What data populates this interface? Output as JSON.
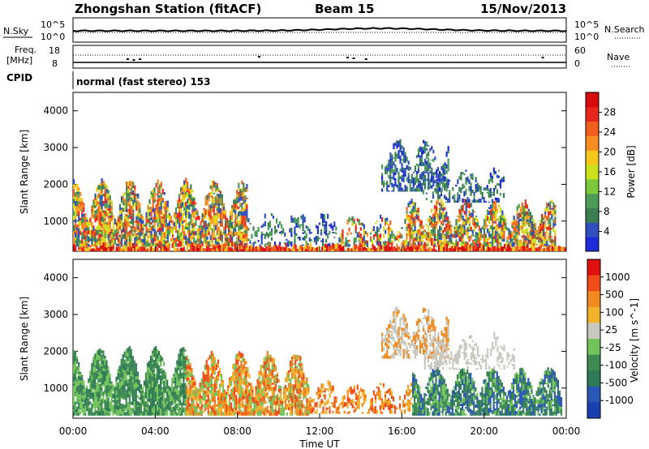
{
  "header": {
    "station": "Zhongshan Station (fitACF)",
    "beam": "Beam 15",
    "date": "15/Nov/2013"
  },
  "top_panels": {
    "nsky_label": "N.Sky",
    "nsearch_label": "N.Search",
    "nsky_ticks": [
      "10^5",
      "10^0"
    ],
    "nsearch_ticks": [
      "10^5",
      "10^0"
    ],
    "freq_label_1": "Freq.",
    "freq_label_2": "[MHz]",
    "freq_ticks": [
      "18",
      "8"
    ],
    "nave_label": "Nave",
    "nave_ticks": [
      "60",
      "0"
    ],
    "cpid_label": "CPID",
    "cpid_text": "normal (fast stereo) 153"
  },
  "time_axis": {
    "label": "Time UT",
    "ticks": [
      "00:00",
      "04:00",
      "08:00",
      "12:00",
      "16:00",
      "20:00",
      "00:00"
    ]
  },
  "chart_data": [
    {
      "type": "heatmap",
      "title": "",
      "xlabel": "Time UT",
      "ylabel": "Slant Range [km]",
      "xlim": [
        0,
        24
      ],
      "ylim": [
        180,
        4500
      ],
      "yticks": [
        "1000",
        "2000",
        "3000",
        "4000"
      ],
      "colorbar": {
        "label": "Power [dB]",
        "ticks": [
          "28",
          "24",
          "20",
          "16",
          "12",
          "8",
          "4"
        ],
        "colors": [
          "#1e2bd8",
          "#2f4fbf",
          "#3a7d52",
          "#4c9c58",
          "#7cc93c",
          "#c9e21c",
          "#f3c81b",
          "#f78c20",
          "#f05f1e",
          "#e8261c",
          "#d80c0c"
        ]
      },
      "description_values": {
        "regions": [
          {
            "t0": 0.0,
            "t1": 24.0,
            "r0": 180,
            "r1": 300,
            "level": "strong"
          },
          {
            "t0": 0.0,
            "t1": 8.5,
            "r0": 300,
            "r1": 2050,
            "level": "strong"
          },
          {
            "t0": 15.0,
            "t1": 18.3,
            "r0": 1800,
            "r1": 3150,
            "level": "weak"
          },
          {
            "t0": 16.2,
            "t1": 23.0,
            "r0": 300,
            "r1": 1500,
            "level": "strong"
          }
        ]
      }
    },
    {
      "type": "heatmap",
      "title": "",
      "xlabel": "Time UT",
      "ylabel": "Slant Range [km]",
      "xlim": [
        0,
        24
      ],
      "ylim": [
        180,
        4500
      ],
      "yticks": [
        "1000",
        "2000",
        "3000",
        "4000"
      ],
      "colorbar": {
        "label": "Velocity [m s^-1]",
        "ticks": [
          "1000",
          "500",
          "100",
          "25",
          "-25",
          "-100",
          "-500",
          "-1000"
        ],
        "colors": [
          "#e0100f",
          "#f04c1a",
          "#f08a20",
          "#f2b22c",
          "#c8c8c0",
          "#72c45a",
          "#3e8a52",
          "#2e7a56",
          "#2a56b6",
          "#1a3fb0"
        ]
      }
    }
  ]
}
